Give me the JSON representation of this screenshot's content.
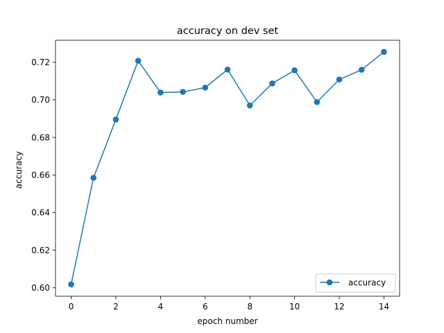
{
  "chart_data": {
    "type": "line",
    "title": "accuracy on dev set",
    "xlabel": "epoch number",
    "ylabel": "accuracy",
    "xlim": [
      -0.7,
      14.7
    ],
    "ylim": [
      0.5955,
      0.7317
    ],
    "xticks": [
      0,
      2,
      4,
      6,
      8,
      10,
      12,
      14
    ],
    "xtick_labels": [
      "0",
      "2",
      "4",
      "6",
      "8",
      "10",
      "12",
      "14"
    ],
    "yticks": [
      0.6,
      0.62,
      0.64,
      0.66,
      0.68,
      0.7,
      0.72
    ],
    "ytick_labels": [
      "0.60",
      "0.62",
      "0.64",
      "0.66",
      "0.68",
      "0.70",
      "0.72"
    ],
    "grid": false,
    "legend_position": "lower-right",
    "series": [
      {
        "name": "accuracy",
        "color": "#1f77b4",
        "marker": "circle",
        "x": [
          0,
          1,
          2,
          3,
          4,
          5,
          6,
          7,
          8,
          9,
          10,
          11,
          12,
          13,
          14
        ],
        "y": [
          0.6018,
          0.6585,
          0.6895,
          0.7208,
          0.7039,
          0.7042,
          0.7065,
          0.7161,
          0.697,
          0.7087,
          0.7157,
          0.6988,
          0.7108,
          0.716,
          0.7255
        ]
      }
    ]
  }
}
